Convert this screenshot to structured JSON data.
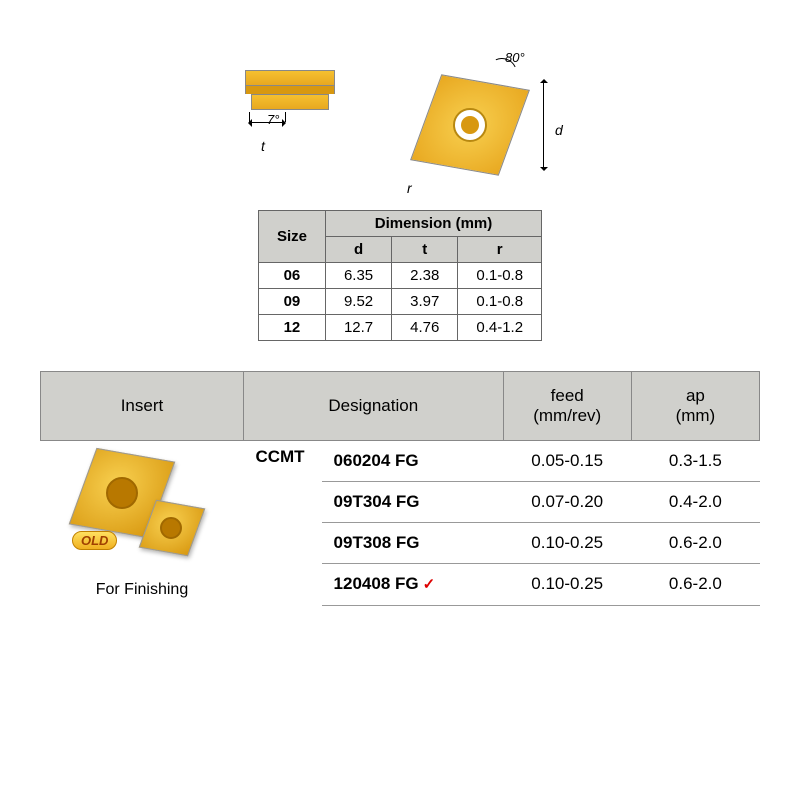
{
  "diagram": {
    "angle_relief": "7°",
    "angle_nose": "80°",
    "dim_t": "t",
    "dim_d": "d",
    "dim_r": "r"
  },
  "dimension_table": {
    "header_size": "Size",
    "header_dimension": "Dimension (mm)",
    "col_d": "d",
    "col_t": "t",
    "col_r": "r",
    "rows": [
      {
        "size": "06",
        "d": "6.35",
        "t": "2.38",
        "r": "0.1-0.8"
      },
      {
        "size": "09",
        "d": "9.52",
        "t": "3.97",
        "r": "0.1-0.8"
      },
      {
        "size": "12",
        "d": "12.7",
        "t": "4.76",
        "r": "0.4-1.2"
      }
    ]
  },
  "main_table": {
    "header_insert": "Insert",
    "header_designation": "Designation",
    "header_feed": "feed\n(mm/rev)",
    "header_ap": "ap\n(mm)",
    "ccmt": "CCMT",
    "old_badge": "OLD",
    "finishing": "For Finishing",
    "rows": [
      {
        "desig": "060204 FG",
        "feed": "0.05-0.15",
        "ap": "0.3-1.5",
        "check": false
      },
      {
        "desig": "09T304 FG",
        "feed": "0.07-0.20",
        "ap": "0.4-2.0",
        "check": false
      },
      {
        "desig": "09T308 FG",
        "feed": "0.10-0.25",
        "ap": "0.6-2.0",
        "check": false
      },
      {
        "desig": "120408 FG",
        "feed": "0.10-0.25",
        "ap": "0.6-2.0",
        "check": true
      }
    ]
  }
}
